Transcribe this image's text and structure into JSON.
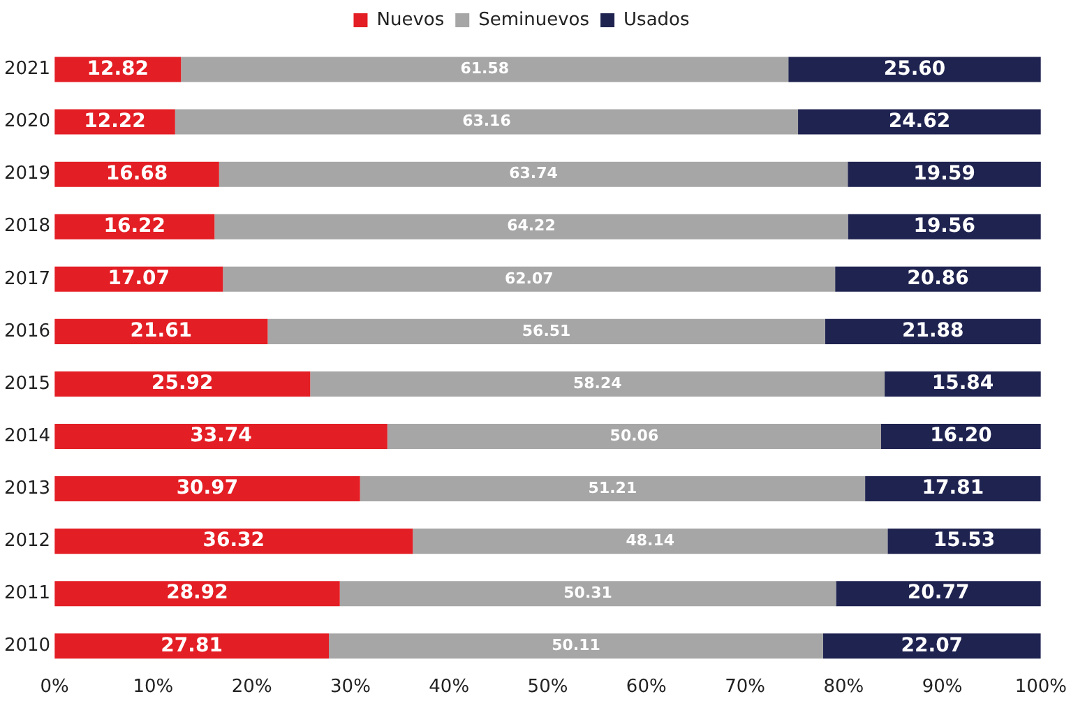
{
  "chart_data": {
    "type": "bar",
    "orientation": "horizontal",
    "stacked": true,
    "categories": [
      "2021",
      "2020",
      "2019",
      "2018",
      "2017",
      "2016",
      "2015",
      "2014",
      "2013",
      "2012",
      "2011",
      "2010"
    ],
    "series": [
      {
        "name": "Nuevos",
        "color": "#e31e24",
        "values": [
          12.82,
          12.22,
          16.68,
          16.22,
          17.07,
          21.61,
          25.92,
          33.74,
          30.97,
          36.32,
          28.92,
          27.81
        ],
        "value_labels": [
          "12.82",
          "12.22",
          "16.68",
          "16.22",
          "17.07",
          "21.61",
          "25.92",
          "33.74",
          "30.97",
          "36.32",
          "28.92",
          "27.81"
        ]
      },
      {
        "name": "Seminuevos",
        "color": "#a6a6a6",
        "values": [
          61.58,
          63.16,
          63.74,
          64.22,
          62.07,
          56.51,
          58.24,
          50.06,
          51.21,
          48.14,
          50.31,
          50.11
        ],
        "value_labels": [
          "61.58",
          "63.16",
          "63.74",
          "64.22",
          "62.07",
          "56.51",
          "58.24",
          "50.06",
          "51.21",
          "48.14",
          "50.31",
          "50.11"
        ]
      },
      {
        "name": "Usados",
        "color": "#1f2350",
        "values": [
          25.6,
          24.62,
          19.59,
          19.56,
          20.86,
          21.88,
          15.84,
          16.2,
          17.81,
          15.53,
          20.77,
          22.07
        ],
        "value_labels": [
          "25.60",
          "24.62",
          "19.59",
          "19.56",
          "20.86",
          "21.88",
          "15.84",
          "16.20",
          "17.81",
          "15.53",
          "20.77",
          "22.07"
        ]
      }
    ],
    "xlim": [
      0,
      100
    ],
    "xticks": [
      {
        "value": 0,
        "label": "0%"
      },
      {
        "value": 10,
        "label": "10%"
      },
      {
        "value": 20,
        "label": "20%"
      },
      {
        "value": 30,
        "label": "30%"
      },
      {
        "value": 40,
        "label": "40%"
      },
      {
        "value": 50,
        "label": "50%"
      },
      {
        "value": 60,
        "label": "60%"
      },
      {
        "value": 70,
        "label": "70%"
      },
      {
        "value": 80,
        "label": "80%"
      },
      {
        "value": 90,
        "label": "90%"
      },
      {
        "value": 100,
        "label": "100%"
      }
    ],
    "grid": false,
    "legend": "top"
  }
}
